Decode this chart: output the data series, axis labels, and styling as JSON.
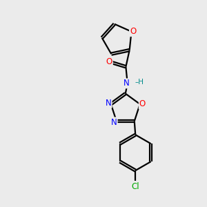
{
  "background_color": "#ebebeb",
  "bond_color": "#000000",
  "atom_colors": {
    "O": "#ff0000",
    "N": "#0000ff",
    "Cl": "#00aa00",
    "C": "#000000",
    "H": "#008b8b"
  }
}
